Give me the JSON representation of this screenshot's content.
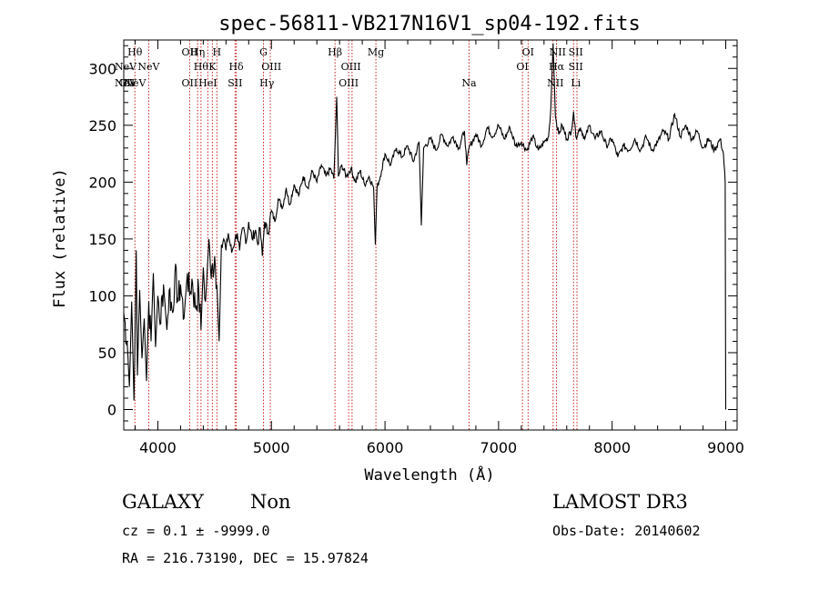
{
  "chart_data": {
    "type": "line",
    "title": "spec-56811-VB217N16V1_sp04-192.fits",
    "xlabel": "Wavelength (Å)",
    "ylabel": "Flux (relative)",
    "xlim": [
      3700,
      9100
    ],
    "ylim": [
      -18,
      325
    ],
    "x_ticks": [
      4000,
      5000,
      6000,
      7000,
      8000,
      9000
    ],
    "y_ticks": [
      0,
      50,
      100,
      150,
      200,
      250,
      300
    ],
    "series": [
      {
        "name": "flux",
        "points": [
          [
            3700,
            85
          ],
          [
            3730,
            60
          ],
          [
            3750,
            20
          ],
          [
            3770,
            95
          ],
          [
            3790,
            8
          ],
          [
            3800,
            70
          ],
          [
            3810,
            140
          ],
          [
            3820,
            30
          ],
          [
            3840,
            105
          ],
          [
            3860,
            45
          ],
          [
            3880,
            80
          ],
          [
            3900,
            25
          ],
          [
            3920,
            95
          ],
          [
            3940,
            60
          ],
          [
            3960,
            120
          ],
          [
            3980,
            55
          ],
          [
            4000,
            100
          ],
          [
            4020,
            75
          ],
          [
            4050,
            110
          ],
          [
            4080,
            70
          ],
          [
            4100,
            105
          ],
          [
            4130,
            85
          ],
          [
            4150,
            120
          ],
          [
            4180,
            95
          ],
          [
            4200,
            110
          ],
          [
            4230,
            80
          ],
          [
            4260,
            120
          ],
          [
            4280,
            100
          ],
          [
            4300,
            115
          ],
          [
            4330,
            90
          ],
          [
            4360,
            105
          ],
          [
            4380,
            70
          ],
          [
            4400,
            125
          ],
          [
            4420,
            95
          ],
          [
            4450,
            150
          ],
          [
            4470,
            115
          ],
          [
            4500,
            135
          ],
          [
            4520,
            110
          ],
          [
            4540,
            60
          ],
          [
            4560,
            145
          ],
          [
            4580,
            150
          ],
          [
            4600,
            140
          ],
          [
            4620,
            155
          ],
          [
            4650,
            138
          ],
          [
            4680,
            150
          ],
          [
            4700,
            155
          ],
          [
            4720,
            140
          ],
          [
            4750,
            160
          ],
          [
            4780,
            148
          ],
          [
            4800,
            165
          ],
          [
            4830,
            150
          ],
          [
            4860,
            158
          ],
          [
            4880,
            145
          ],
          [
            4900,
            160
          ],
          [
            4920,
            135
          ],
          [
            4940,
            165
          ],
          [
            4970,
            155
          ],
          [
            5000,
            175
          ],
          [
            5030,
            165
          ],
          [
            5060,
            185
          ],
          [
            5100,
            178
          ],
          [
            5130,
            195
          ],
          [
            5160,
            180
          ],
          [
            5200,
            198
          ],
          [
            5240,
            188
          ],
          [
            5280,
            205
          ],
          [
            5320,
            195
          ],
          [
            5360,
            210
          ],
          [
            5400,
            200
          ],
          [
            5440,
            215
          ],
          [
            5480,
            205
          ],
          [
            5520,
            212
          ],
          [
            5550,
            203
          ],
          [
            5575,
            275
          ],
          [
            5590,
            205
          ],
          [
            5620,
            215
          ],
          [
            5660,
            205
          ],
          [
            5700,
            212
          ],
          [
            5740,
            200
          ],
          [
            5780,
            210
          ],
          [
            5820,
            198
          ],
          [
            5860,
            205
          ],
          [
            5900,
            195
          ],
          [
            5915,
            145
          ],
          [
            5930,
            195
          ],
          [
            5970,
            210
          ],
          [
            6000,
            225
          ],
          [
            6050,
            215
          ],
          [
            6100,
            230
          ],
          [
            6150,
            222
          ],
          [
            6200,
            232
          ],
          [
            6250,
            218
          ],
          [
            6300,
            235
          ],
          [
            6320,
            162
          ],
          [
            6340,
            230
          ],
          [
            6400,
            238
          ],
          [
            6450,
            228
          ],
          [
            6500,
            242
          ],
          [
            6550,
            232
          ],
          [
            6600,
            240
          ],
          [
            6650,
            230
          ],
          [
            6700,
            245
          ],
          [
            6720,
            215
          ],
          [
            6740,
            230
          ],
          [
            6800,
            242
          ],
          [
            6850,
            232
          ],
          [
            6900,
            248
          ],
          [
            6950,
            240
          ],
          [
            7000,
            250
          ],
          [
            7050,
            238
          ],
          [
            7100,
            248
          ],
          [
            7150,
            232
          ],
          [
            7200,
            235
          ],
          [
            7250,
            228
          ],
          [
            7300,
            240
          ],
          [
            7350,
            228
          ],
          [
            7400,
            235
          ],
          [
            7440,
            240
          ],
          [
            7460,
            265
          ],
          [
            7480,
            322
          ],
          [
            7500,
            258
          ],
          [
            7530,
            242
          ],
          [
            7560,
            250
          ],
          [
            7600,
            238
          ],
          [
            7640,
            245
          ],
          [
            7660,
            262
          ],
          [
            7680,
            240
          ],
          [
            7720,
            248
          ],
          [
            7760,
            238
          ],
          [
            7800,
            250
          ],
          [
            7850,
            238
          ],
          [
            7900,
            245
          ],
          [
            7950,
            232
          ],
          [
            8000,
            238
          ],
          [
            8050,
            222
          ],
          [
            8100,
            232
          ],
          [
            8150,
            228
          ],
          [
            8200,
            238
          ],
          [
            8250,
            228
          ],
          [
            8300,
            240
          ],
          [
            8350,
            228
          ],
          [
            8400,
            235
          ],
          [
            8450,
            245
          ],
          [
            8500,
            238
          ],
          [
            8550,
            260
          ],
          [
            8600,
            240
          ],
          [
            8650,
            250
          ],
          [
            8700,
            238
          ],
          [
            8750,
            245
          ],
          [
            8800,
            230
          ],
          [
            8850,
            238
          ],
          [
            8900,
            228
          ],
          [
            8950,
            238
          ],
          [
            8980,
            225
          ],
          [
            8995,
            200
          ],
          [
            9000,
            0
          ]
        ]
      }
    ],
    "emission_lines": [
      {
        "label": "NeV",
        "x": 3346,
        "row": 3
      },
      {
        "label": "NeV",
        "x": 3426,
        "row": 2
      },
      {
        "label": "OII",
        "x": 3727,
        "row": 3
      },
      {
        "label": "Hθ",
        "x": 3798,
        "row": 1
      },
      {
        "label": "NeV",
        "x": 3800,
        "row": 3
      },
      {
        "label": "NeV",
        "x": 3920,
        "row": 2
      },
      {
        "label": "OII",
        "x": 4280,
        "row": 1
      },
      {
        "label": "OII",
        "x": 4280,
        "row": 3
      },
      {
        "label": "Hη",
        "x": 4350,
        "row": 1
      },
      {
        "label": "Hθ",
        "x": 4380,
        "row": 2
      },
      {
        "label": "HeI",
        "x": 4440,
        "row": 3
      },
      {
        "label": "H",
        "x": 4520,
        "row": 1
      },
      {
        "label": "K",
        "x": 4480,
        "row": 2
      },
      {
        "label": "Hδ",
        "x": 4690,
        "row": 2
      },
      {
        "label": "SII",
        "x": 4680,
        "row": 3
      },
      {
        "label": "G",
        "x": 4930,
        "row": 1
      },
      {
        "label": "OIII",
        "x": 5000,
        "row": 2
      },
      {
        "label": "Hγ",
        "x": 4960,
        "row": 3
      },
      {
        "label": "Hβ",
        "x": 5560,
        "row": 1
      },
      {
        "label": "OIII",
        "x": 5700,
        "row": 2
      },
      {
        "label": "OIII",
        "x": 5680,
        "row": 3
      },
      {
        "label": "Mg",
        "x": 5920,
        "row": 1
      },
      {
        "label": "Na",
        "x": 6740,
        "row": 3
      },
      {
        "label": "OI",
        "x": 7260,
        "row": 1
      },
      {
        "label": "OI",
        "x": 7210,
        "row": 2
      },
      {
        "label": "NII",
        "x": 7520,
        "row": 1
      },
      {
        "label": "SII",
        "x": 7680,
        "row": 1
      },
      {
        "label": "Hα",
        "x": 7510,
        "row": 2
      },
      {
        "label": "SII",
        "x": 7680,
        "row": 2
      },
      {
        "label": "NII",
        "x": 7500,
        "row": 3
      },
      {
        "label": "Li",
        "x": 7680,
        "row": 3
      }
    ],
    "line_marker_color": "#cc2222",
    "line_marker_x": [
      3798,
      3920,
      4280,
      4350,
      4380,
      4440,
      4480,
      4520,
      4680,
      4690,
      4930,
      4990,
      5560,
      5680,
      5710,
      5920,
      6740,
      7210,
      7260,
      7480,
      7510,
      7660,
      7690
    ]
  },
  "info": {
    "classification": "GALAXY",
    "subclass": "Non",
    "survey": "LAMOST DR3",
    "cz": "cz = 0.1 ± -9999.0",
    "obs_date": "Obs-Date: 20140602",
    "radec": "RA = 216.73190, DEC =  15.97824"
  }
}
